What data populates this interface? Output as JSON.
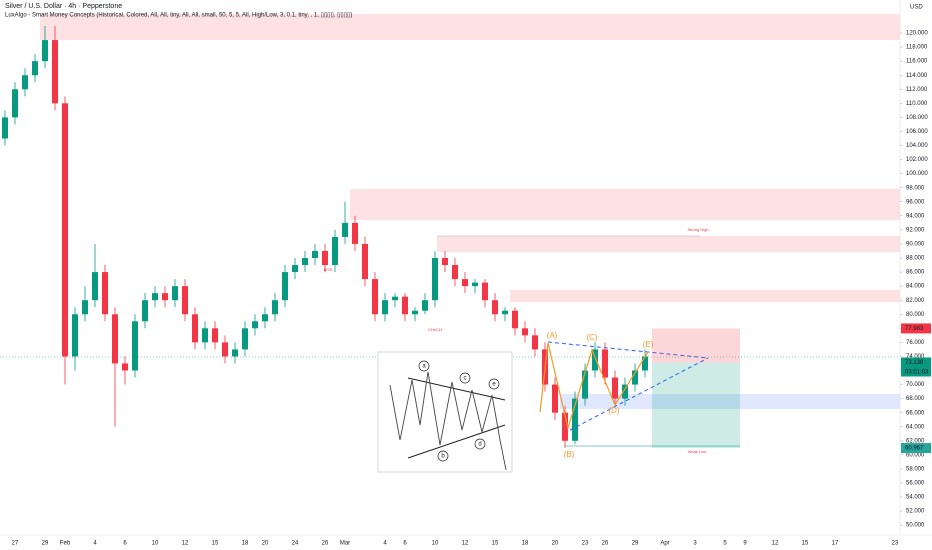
{
  "chart_data": {
    "type": "candlestick",
    "title": "Silver / U.S. Dollar · 4h · Pepperstone",
    "subtitle": "LuxAlgo - Smart Money Concepts (Historical, Colored, All, All, tiny, All, All, small, 50, 5, 5, All, High/Low, 3, 0.1, tiny, , 1, ▯▯▯▯, ▯▯▯▯)",
    "currency": "USD",
    "up_color": "#089981",
    "down_color": "#f23645",
    "categories": [
      null,
      "27",
      null,
      null,
      "29",
      null,
      "Feb",
      null,
      null,
      "4",
      null,
      null,
      "6",
      null,
      null,
      "10",
      null,
      null,
      "12",
      null,
      null,
      "15",
      null,
      null,
      "18",
      null,
      "20",
      null,
      null,
      "24",
      null,
      null,
      "26",
      null,
      "Mar",
      null,
      null,
      null,
      "4",
      null,
      "6",
      null,
      null,
      "10",
      null,
      null,
      "12",
      null,
      null,
      "15",
      null,
      null,
      "18",
      null,
      null,
      "20",
      null,
      null,
      "23",
      null,
      "26",
      null,
      null,
      "29",
      null,
      null,
      "Apr",
      null,
      null,
      "3",
      null,
      null,
      "5",
      null,
      "9",
      null,
      null,
      "12",
      null,
      null,
      "15",
      null,
      null,
      "17",
      null,
      null,
      null,
      null,
      null,
      "23"
    ],
    "open": [
      105,
      108,
      112,
      114,
      116,
      119,
      110,
      74,
      80,
      82,
      86,
      80,
      73,
      72,
      79,
      82,
      83,
      82,
      84,
      80,
      76,
      78,
      76,
      74,
      75,
      78,
      79,
      80,
      82,
      86,
      87,
      88,
      89,
      87,
      91,
      93,
      90,
      85,
      80,
      82,
      82.5,
      80,
      80.5,
      82,
      88,
      87,
      85,
      84,
      84.5,
      82,
      80,
      80.5,
      78,
      77,
      75,
      70,
      66,
      62,
      68,
      72,
      75,
      71,
      68,
      70,
      72,
      null,
      null,
      null,
      null,
      null,
      null,
      null,
      null,
      null,
      null,
      null,
      null,
      null,
      null,
      null,
      null,
      null,
      null,
      null,
      null,
      null,
      null,
      null,
      null,
      null
    ],
    "high": [
      109,
      113,
      115,
      117,
      121,
      121,
      111,
      81,
      84,
      90,
      87,
      81,
      74,
      80,
      83,
      84,
      84,
      85,
      85,
      81,
      79,
      79,
      77,
      76,
      79,
      80,
      81,
      83,
      87,
      88,
      89,
      90,
      90,
      92,
      96,
      94,
      91,
      86,
      83,
      83,
      83,
      81,
      83,
      89,
      89,
      88,
      86,
      85,
      85,
      83,
      81,
      81,
      79,
      78,
      76,
      71,
      67,
      69,
      73,
      76,
      76,
      72,
      71,
      73,
      75,
      null,
      null,
      null,
      null,
      null,
      null,
      null,
      null,
      null,
      null,
      null,
      null,
      null,
      null,
      null,
      null,
      null,
      null,
      null,
      null,
      null,
      null,
      null,
      null,
      null
    ],
    "low": [
      104,
      107,
      111,
      113,
      115,
      109,
      70,
      72,
      79,
      81,
      79,
      64,
      70,
      71,
      78,
      81,
      81,
      81,
      79,
      75,
      75,
      75,
      73,
      73,
      74,
      77,
      78,
      79,
      81,
      85,
      86,
      87,
      86,
      86,
      90,
      89,
      84,
      79,
      79,
      81,
      79,
      79,
      80,
      81,
      86,
      84,
      83,
      83,
      81,
      79,
      79,
      77,
      76,
      74,
      69,
      65,
      61,
      61.5,
      67,
      71,
      70,
      67,
      67,
      69,
      71,
      null,
      null,
      null,
      null,
      null,
      null,
      null,
      null,
      null,
      null,
      null,
      null,
      null,
      null,
      null,
      null,
      null,
      null,
      null,
      null,
      null,
      null,
      null,
      null,
      null
    ],
    "close": [
      108,
      112,
      114,
      116,
      119,
      110,
      74,
      80,
      82,
      86,
      80,
      73,
      72,
      79,
      82,
      83,
      82,
      84,
      80,
      76,
      78,
      76,
      74,
      75,
      78,
      79,
      80,
      82,
      86,
      87,
      88,
      89,
      87,
      91,
      93,
      90,
      85,
      80,
      82,
      82.5,
      80,
      80.5,
      82,
      88,
      87,
      85,
      84,
      84.5,
      82,
      80,
      80.5,
      78,
      77,
      75,
      70,
      66,
      62,
      68,
      72,
      75,
      71,
      68,
      70,
      72,
      74,
      null,
      null,
      null,
      null,
      null,
      null,
      null,
      null,
      null,
      null,
      null,
      null,
      null,
      null,
      null,
      null,
      null,
      null,
      null,
      null,
      null,
      null,
      null,
      null,
      null
    ],
    "ylim": [
      48.6,
      124.7
    ],
    "yticks": [
      {
        "value": 50,
        "label": "50.000"
      },
      {
        "value": 52,
        "label": "52.000"
      },
      {
        "value": 54,
        "label": "54.000"
      },
      {
        "value": 56,
        "label": "56.000"
      },
      {
        "value": 58,
        "label": "58.000"
      },
      {
        "value": 60,
        "label": "60.000"
      },
      {
        "value": 62,
        "label": "62.000"
      },
      {
        "value": 64,
        "label": "64.000"
      },
      {
        "value": 66,
        "label": "66.000"
      },
      {
        "value": 68,
        "label": "68.000"
      },
      {
        "value": 70,
        "label": "70.000"
      },
      {
        "value": 72,
        "label": "72.000"
      },
      {
        "value": 74,
        "label": "74.000"
      },
      {
        "value": 76,
        "label": "76.000"
      },
      {
        "value": 78,
        "label": "78.000"
      },
      {
        "value": 80,
        "label": "80.000"
      },
      {
        "value": 82,
        "label": "82.000"
      },
      {
        "value": 84,
        "label": "84.000"
      },
      {
        "value": 86,
        "label": "86.000"
      },
      {
        "value": 88,
        "label": "88.000"
      },
      {
        "value": 90,
        "label": "90.000"
      },
      {
        "value": 92,
        "label": "92.000"
      },
      {
        "value": 94,
        "label": "94.000"
      },
      {
        "value": 96,
        "label": "96.000"
      },
      {
        "value": 98,
        "label": "98.000"
      },
      {
        "value": 100,
        "label": "100.000"
      },
      {
        "value": 102,
        "label": "102.000"
      },
      {
        "value": 104,
        "label": "104.000"
      },
      {
        "value": 106,
        "label": "106.000"
      },
      {
        "value": 108,
        "label": "108.000"
      },
      {
        "value": 110,
        "label": "110.000"
      },
      {
        "value": 112,
        "label": "112.000"
      },
      {
        "value": 114,
        "label": "114.000"
      },
      {
        "value": 116,
        "label": "116.000"
      },
      {
        "value": 118,
        "label": "118.000"
      },
      {
        "value": 120,
        "label": "120.000"
      }
    ],
    "price_tags": [
      {
        "value": 77.983,
        "label": "77.983",
        "color": "#f23645"
      },
      {
        "value": 73.138,
        "label": "73.138",
        "color": "#089981"
      },
      {
        "value": 60.967,
        "label": "60.967",
        "color": "#26a69a"
      }
    ],
    "countdown": "03:01:03",
    "wave_labels": [
      "(A)",
      "(B)",
      "(C)",
      "(D)",
      "(E)"
    ],
    "annotations": [
      "CHoCH",
      "BOS",
      "Strong High",
      "Weak Low"
    ],
    "inset_labels": [
      "a",
      "b",
      "c",
      "d",
      "e"
    ]
  }
}
